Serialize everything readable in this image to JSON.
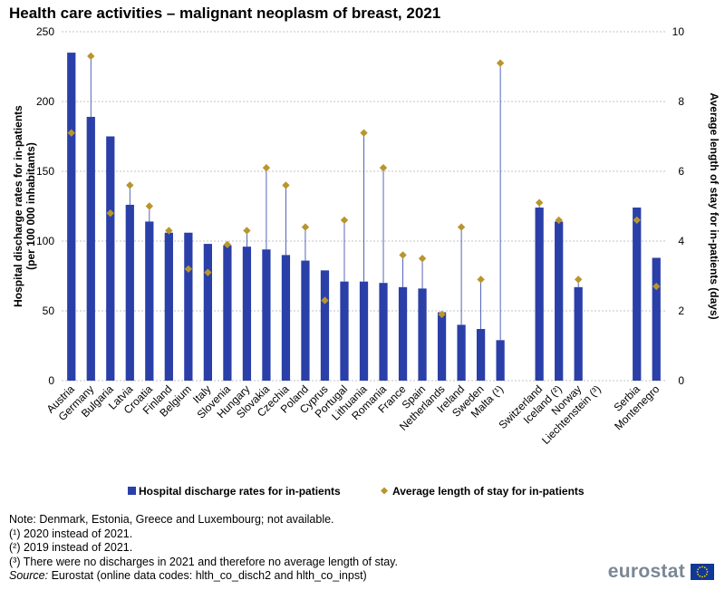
{
  "chart_data": {
    "type": "bar+scatter",
    "title": "Health care activities – malignant neoplasm of breast, 2021",
    "ylabel_left": [
      "Hospital discharge rates for in-patients",
      "(per 100 000 inhabitants)"
    ],
    "ylabel_right": "Average length of stay for in-patients (days)",
    "ylim_left": [
      0,
      250
    ],
    "ylim_right": [
      0,
      10
    ],
    "yticks_left": [
      "0",
      "50",
      "100",
      "150",
      "200",
      "250"
    ],
    "yticks_right": [
      "0",
      "2",
      "4",
      "6",
      "8",
      "10"
    ],
    "categories": [
      "Austria",
      "Germany",
      "Bulgaria",
      "Latvia",
      "Croatia",
      "Finland",
      "Belgium",
      "Italy",
      "Slovenia",
      "Hungary",
      "Slovakia",
      "Czechia",
      "Poland",
      "Cyprus",
      "Portugal",
      "Lithuania",
      "Romania",
      "France",
      "Spain",
      "Netherlands",
      "Ireland",
      "Sweden",
      "Malta (¹)",
      "",
      "Switzerland",
      "Iceland (²)",
      "Norway",
      "Liechtenstein (³)",
      "",
      "Serbia",
      "Montenegro"
    ],
    "series": [
      {
        "name": "Hospital discharge rates for in-patients",
        "axis": "left",
        "color": "#2a3fa8",
        "values": [
          235,
          189,
          175,
          126,
          114,
          106,
          106,
          98,
          97,
          96,
          94,
          90,
          86,
          79,
          71,
          71,
          70,
          67,
          66,
          49,
          40,
          37,
          29,
          null,
          124,
          114,
          67,
          0,
          null,
          124,
          88
        ]
      },
      {
        "name": "Average length of stay for in-patients",
        "axis": "right",
        "color": "#b8962e",
        "values": [
          7.1,
          9.3,
          4.8,
          5.6,
          5.0,
          4.3,
          3.2,
          3.1,
          3.9,
          4.3,
          6.1,
          5.6,
          4.4,
          2.3,
          4.6,
          7.1,
          6.1,
          3.6,
          3.5,
          1.9,
          4.4,
          2.9,
          9.1,
          null,
          5.1,
          4.6,
          2.9,
          null,
          null,
          4.6,
          2.7
        ]
      }
    ],
    "legend": [
      "Hospital discharge rates for in-patients",
      "Average length of stay for in-patients"
    ],
    "legend_position": "bottom"
  },
  "notes": [
    "Note: Denmark, Estonia, Greece and Luxembourg; not available.",
    "(¹) 2020 instead of 2021.",
    "(²) 2019 instead of 2021.",
    "(³) There were no discharges in 2021 and therefore no average length of stay."
  ],
  "source": {
    "label": "Source:",
    "text": " Eurostat (online data codes: hlth_co_disch2 and hlth_co_inpst)"
  },
  "logo": {
    "text": "eurostat"
  },
  "colors": {
    "bar": "#2a3fa8",
    "marker": "#b8962e",
    "grid": "#b0b0b0",
    "logo": "#7a8796",
    "flag": "#103996",
    "star": "#ffcc00"
  }
}
